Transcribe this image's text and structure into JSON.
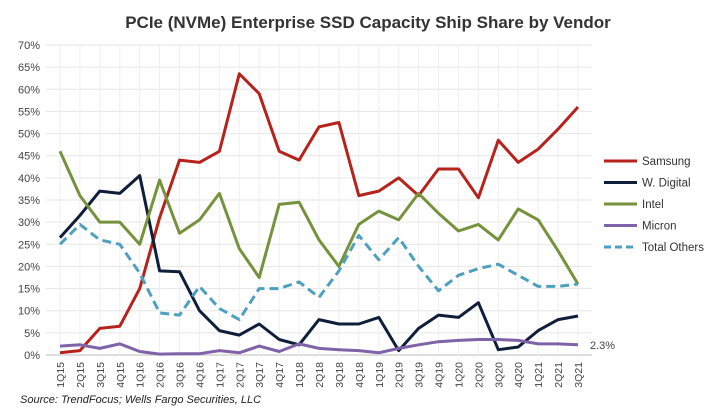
{
  "chart_data": {
    "type": "line",
    "title": "PCIe (NVMe) Enterprise SSD Capacity Ship Share by Vendor",
    "xlabel": "",
    "ylabel": "",
    "ylim": [
      0,
      70
    ],
    "yticks": [
      "0%",
      "5%",
      "10%",
      "15%",
      "20%",
      "25%",
      "30%",
      "35%",
      "40%",
      "45%",
      "50%",
      "55%",
      "60%",
      "65%",
      "70%"
    ],
    "grid": true,
    "legend_position": "right",
    "categories": [
      "1Q15",
      "2Q15",
      "3Q15",
      "4Q15",
      "1Q16",
      "2Q16",
      "3Q16",
      "4Q16",
      "1Q17",
      "2Q17",
      "3Q17",
      "4Q17",
      "1Q18",
      "2Q18",
      "3Q18",
      "4Q18",
      "1Q19",
      "2Q19",
      "3Q19",
      "4Q19",
      "1Q20",
      "2Q20",
      "3Q20",
      "4Q20",
      "1Q21",
      "2Q21",
      "3Q21"
    ],
    "series": [
      {
        "name": "Samsung",
        "color": "#b5231c",
        "dashed": false,
        "values": [
          0.5,
          1,
          6,
          6.5,
          15,
          31,
          44,
          43.5,
          46,
          63.5,
          59,
          46,
          44,
          51.5,
          52.5,
          36,
          37,
          40,
          36,
          42,
          42,
          35.5,
          48.5,
          43.5,
          46.5,
          51,
          56
        ]
      },
      {
        "name": "W. Digital",
        "color": "#0f1e3a",
        "dashed": false,
        "values": [
          26.5,
          31.5,
          37,
          36.5,
          40.5,
          19,
          18.8,
          10,
          5.5,
          4.5,
          7,
          3.5,
          2.3,
          8,
          7,
          7,
          8.5,
          1,
          6,
          9,
          8.5,
          11.8,
          1.2,
          1.8,
          5.5,
          8,
          8.8
        ]
      },
      {
        "name": "Intel",
        "color": "#76923c",
        "dashed": false,
        "values": [
          46,
          36,
          30,
          30,
          25,
          39.5,
          27.5,
          30.5,
          36.5,
          24,
          17.5,
          34,
          34.5,
          26,
          20,
          29.5,
          32.5,
          30.5,
          36.5,
          32,
          28,
          29.5,
          26,
          33,
          30.5,
          23.5,
          16
        ]
      },
      {
        "name": "Micron",
        "color": "#7f63a8",
        "dashed": false,
        "values": [
          2,
          2.3,
          1.5,
          2.5,
          0.8,
          0.2,
          0.3,
          0.3,
          1,
          0.5,
          2,
          0.8,
          2.5,
          1.5,
          1.2,
          1,
          0.5,
          1.5,
          2.3,
          3,
          3.3,
          3.5,
          3.5,
          3.3,
          2.5,
          2.5,
          2.3
        ]
      },
      {
        "name": "Total Others",
        "color": "#4fa0bf",
        "dashed": true,
        "values": [
          25,
          29.5,
          26,
          25,
          18.5,
          9.5,
          9,
          15.5,
          10.5,
          8,
          15,
          15,
          16.5,
          13,
          19,
          27,
          21.5,
          26.5,
          20,
          14.5,
          18,
          19.5,
          20.5,
          18,
          15.5,
          15.5,
          16
        ]
      }
    ],
    "annotations": [
      {
        "text": "2.3%",
        "series": "Micron",
        "category": "3Q21"
      }
    ],
    "source": "Source: TrendFocus; Wells Fargo Securities, LLC"
  }
}
